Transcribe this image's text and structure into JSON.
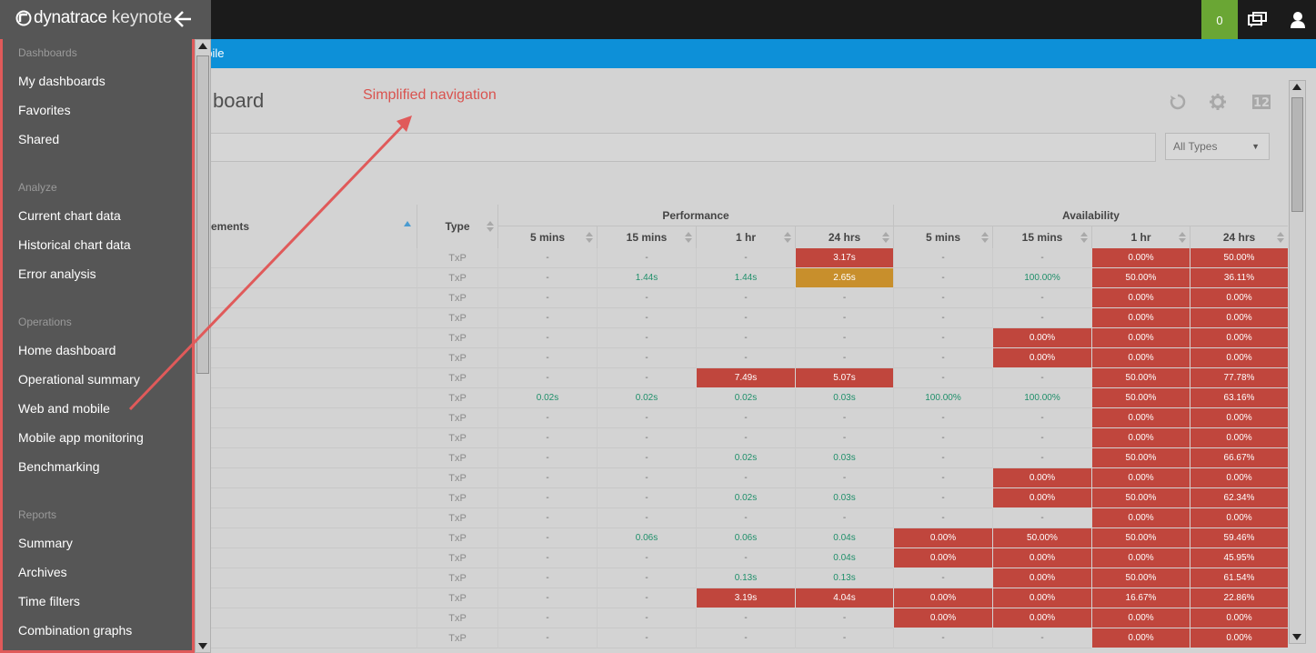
{
  "app": {
    "logo_text_a": "dynatrace",
    "logo_text_b": "keynote",
    "notification_count": "0",
    "breadcrumb": "obile",
    "page_title": "board",
    "annotation": "Simplified navigation"
  },
  "colors": {
    "sidebar_bg": "#565656",
    "highlight_border": "#e05a5a",
    "notification_bg": "#6aa634",
    "blue_bar": "#0d90d8",
    "bad_cell": "#c0463d",
    "warn_cell": "#c88f2c",
    "good_text": "#1f8f6a"
  },
  "sidebar": {
    "sections": [
      {
        "title": "Dashboards",
        "items": [
          "My dashboards",
          "Favorites",
          "Shared"
        ]
      },
      {
        "title": "Analyze",
        "items": [
          "Current chart data",
          "Historical chart data",
          "Error analysis"
        ]
      },
      {
        "title": "Operations",
        "items": [
          "Home dashboard",
          "Operational summary",
          "Web and mobile",
          "Mobile app monitoring",
          "Benchmarking"
        ]
      },
      {
        "title": "Reports",
        "items": [
          "Summary",
          "Archives",
          "Time filters",
          "Combination graphs"
        ]
      }
    ]
  },
  "filter": {
    "type_select": "All Types"
  },
  "table": {
    "group_headers": [
      "Performance",
      "Availability"
    ],
    "columns": [
      "ements",
      "Type",
      "5 mins",
      "15 mins",
      "1 hr",
      "24 hrs",
      "5 mins",
      "15 mins",
      "1 hr",
      "24 hrs"
    ],
    "rows": [
      {
        "type": "TxP",
        "cells": [
          "-",
          "-",
          "-",
          "3.17s",
          "-",
          "-",
          "0.00%",
          "50.00%"
        ],
        "status": [
          "",
          "",
          "",
          "red",
          "",
          "",
          "red",
          "red"
        ]
      },
      {
        "type": "TxP",
        "cells": [
          "-",
          "1.44s",
          "1.44s",
          "2.65s",
          "-",
          "100.00%",
          "50.00%",
          "36.11%"
        ],
        "status": [
          "",
          "green",
          "green",
          "orange",
          "",
          "green",
          "red",
          "red"
        ]
      },
      {
        "type": "TxP",
        "cells": [
          "-",
          "-",
          "-",
          "-",
          "-",
          "-",
          "0.00%",
          "0.00%"
        ],
        "status": [
          "",
          "",
          "",
          "",
          "",
          "",
          "red",
          "red"
        ]
      },
      {
        "type": "TxP",
        "cells": [
          "-",
          "-",
          "-",
          "-",
          "-",
          "-",
          "0.00%",
          "0.00%"
        ],
        "status": [
          "",
          "",
          "",
          "",
          "",
          "",
          "red",
          "red"
        ]
      },
      {
        "type": "TxP",
        "cells": [
          "-",
          "-",
          "-",
          "-",
          "-",
          "0.00%",
          "0.00%",
          "0.00%"
        ],
        "status": [
          "",
          "",
          "",
          "",
          "",
          "red",
          "red",
          "red"
        ]
      },
      {
        "type": "TxP",
        "cells": [
          "-",
          "-",
          "-",
          "-",
          "-",
          "0.00%",
          "0.00%",
          "0.00%"
        ],
        "status": [
          "",
          "",
          "",
          "",
          "",
          "red",
          "red",
          "red"
        ]
      },
      {
        "type": "TxP",
        "cells": [
          "-",
          "-",
          "7.49s",
          "5.07s",
          "-",
          "-",
          "50.00%",
          "77.78%"
        ],
        "status": [
          "",
          "",
          "red",
          "red",
          "",
          "",
          "red",
          "red"
        ]
      },
      {
        "type": "TxP",
        "cells": [
          "0.02s",
          "0.02s",
          "0.02s",
          "0.03s",
          "100.00%",
          "100.00%",
          "50.00%",
          "63.16%"
        ],
        "status": [
          "green",
          "green",
          "green",
          "green",
          "green",
          "green",
          "red",
          "red"
        ]
      },
      {
        "type": "TxP",
        "cells": [
          "-",
          "-",
          "-",
          "-",
          "-",
          "-",
          "0.00%",
          "0.00%"
        ],
        "status": [
          "",
          "",
          "",
          "",
          "",
          "",
          "red",
          "red"
        ]
      },
      {
        "type": "TxP",
        "cells": [
          "-",
          "-",
          "-",
          "-",
          "-",
          "-",
          "0.00%",
          "0.00%"
        ],
        "status": [
          "",
          "",
          "",
          "",
          "",
          "",
          "red",
          "red"
        ]
      },
      {
        "type": "TxP",
        "cells": [
          "-",
          "-",
          "0.02s",
          "0.03s",
          "-",
          "-",
          "50.00%",
          "66.67%"
        ],
        "status": [
          "",
          "",
          "green",
          "green",
          "",
          "",
          "red",
          "red"
        ]
      },
      {
        "type": "TxP",
        "cells": [
          "-",
          "-",
          "-",
          "-",
          "-",
          "0.00%",
          "0.00%",
          "0.00%"
        ],
        "status": [
          "",
          "",
          "",
          "",
          "",
          "red",
          "red",
          "red"
        ]
      },
      {
        "type": "TxP",
        "cells": [
          "-",
          "-",
          "0.02s",
          "0.03s",
          "-",
          "0.00%",
          "50.00%",
          "62.34%"
        ],
        "status": [
          "",
          "",
          "green",
          "green",
          "",
          "red",
          "red",
          "red"
        ]
      },
      {
        "type": "TxP",
        "cells": [
          "-",
          "-",
          "-",
          "-",
          "-",
          "-",
          "0.00%",
          "0.00%"
        ],
        "status": [
          "",
          "",
          "",
          "",
          "",
          "",
          "red",
          "red"
        ]
      },
      {
        "type": "TxP",
        "cells": [
          "-",
          "0.06s",
          "0.06s",
          "0.04s",
          "0.00%",
          "50.00%",
          "50.00%",
          "59.46%"
        ],
        "status": [
          "",
          "green",
          "green",
          "green",
          "red",
          "red",
          "red",
          "red"
        ]
      },
      {
        "type": "TxP",
        "cells": [
          "-",
          "-",
          "-",
          "0.04s",
          "0.00%",
          "0.00%",
          "0.00%",
          "45.95%"
        ],
        "status": [
          "",
          "",
          "",
          "green",
          "red",
          "red",
          "red",
          "red"
        ]
      },
      {
        "type": "TxP",
        "cells": [
          "-",
          "-",
          "0.13s",
          "0.13s",
          "-",
          "0.00%",
          "50.00%",
          "61.54%"
        ],
        "status": [
          "",
          "",
          "green",
          "green",
          "",
          "red",
          "red",
          "red"
        ]
      },
      {
        "type": "TxP",
        "cells": [
          "-",
          "-",
          "3.19s",
          "4.04s",
          "0.00%",
          "0.00%",
          "16.67%",
          "22.86%"
        ],
        "status": [
          "",
          "",
          "red",
          "red",
          "red",
          "red",
          "red",
          "red"
        ]
      },
      {
        "type": "TxP",
        "cells": [
          "-",
          "-",
          "-",
          "-",
          "0.00%",
          "0.00%",
          "0.00%",
          "0.00%"
        ],
        "status": [
          "",
          "",
          "",
          "",
          "red",
          "red",
          "red",
          "red"
        ]
      },
      {
        "type": "TxP",
        "cells": [
          "-",
          "-",
          "-",
          "-",
          "-",
          "-",
          "0.00%",
          "0.00%"
        ],
        "status": [
          "",
          "",
          "",
          "",
          "",
          "",
          "red",
          "red"
        ]
      }
    ]
  }
}
